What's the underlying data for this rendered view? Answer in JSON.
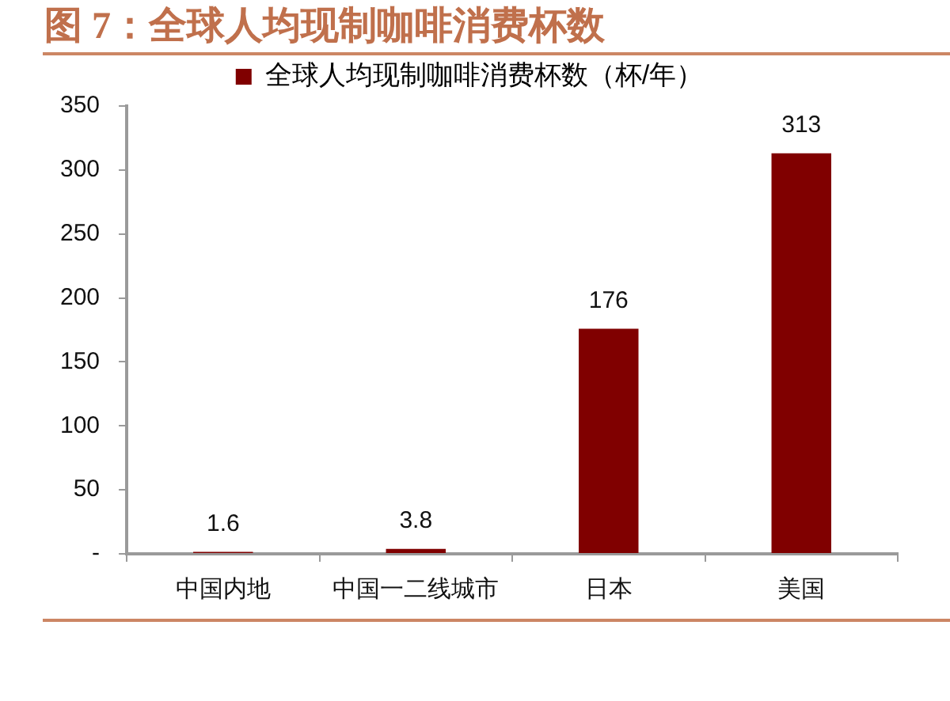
{
  "chart_data": {
    "type": "bar",
    "title": "图 7：全球人均现制咖啡消费杯数",
    "categories": [
      "中国内地",
      "中国一二线城市",
      "日本",
      "美国"
    ],
    "series": [
      {
        "name": "全球人均现制咖啡消费杯数（杯/年）",
        "color": "#800000",
        "values": [
          1.6,
          3.8,
          176,
          313
        ]
      }
    ],
    "ylim": [
      0,
      350
    ],
    "yticks": [
      {
        "value": 0,
        "label": "-"
      },
      50,
      100,
      150,
      200,
      250,
      300,
      350
    ],
    "grid": false,
    "legend": "top",
    "data_labels": true
  }
}
